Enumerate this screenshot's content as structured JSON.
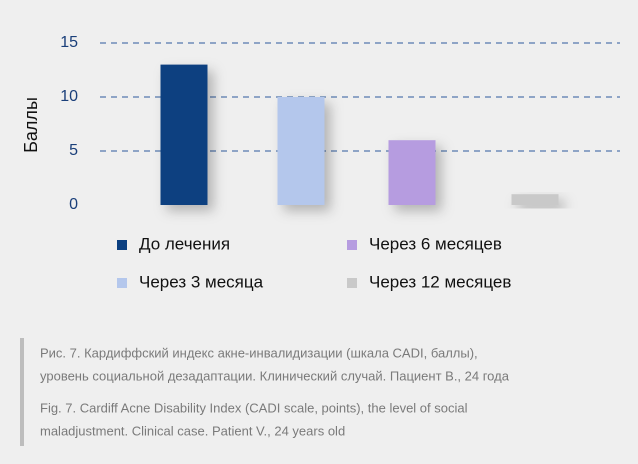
{
  "chart_data": {
    "type": "bar",
    "ylabel": "Баллы",
    "categories": [
      "До лечения",
      "Через 3 месяца",
      "Через 6 месяцев",
      "Через 12 месяцев"
    ],
    "values": [
      13,
      10,
      6,
      1
    ],
    "colors": [
      "#0b3f80",
      "#b4c7ec",
      "#b69ce0",
      "#c9c9c9"
    ],
    "ylim": [
      0,
      15
    ],
    "yticks": [
      0,
      5,
      10,
      15
    ],
    "grid": true
  },
  "caption": {
    "ru": [
      "Рис. 7. Кардиффский индекс акне-инвалидизации (шкала CADI, баллы),",
      "уровень социальной дезадаптации. Клинический случай. Пациент В., 24 года"
    ],
    "en": [
      "Fig. 7. Cardiff Acne Disability Index (CADI scale, points), the level of social",
      "maladjustment. Clinical case. Patient V., 24 years old"
    ]
  }
}
